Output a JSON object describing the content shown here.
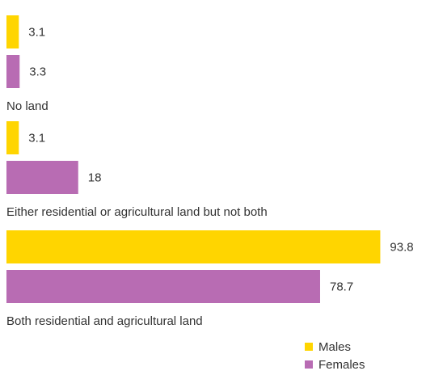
{
  "chart_data": {
    "type": "bar",
    "orientation": "horizontal",
    "categories": [
      "No land",
      "Either residential or agricultural land but not both",
      "Both residential and agricultural land"
    ],
    "series": [
      {
        "name": "Males",
        "values": [
          3.1,
          3.1,
          93.8
        ],
        "color": "#FFD500"
      },
      {
        "name": "Females",
        "values": [
          3.3,
          18,
          78.7
        ],
        "color": "#B86CB3"
      }
    ],
    "value_labels": [
      [
        "3.1",
        "3.1",
        "93.8"
      ],
      [
        "3.3",
        "18",
        "78.7"
      ]
    ],
    "xlim": [
      0,
      100
    ],
    "grid": false,
    "legend_position": "bottom-right"
  }
}
